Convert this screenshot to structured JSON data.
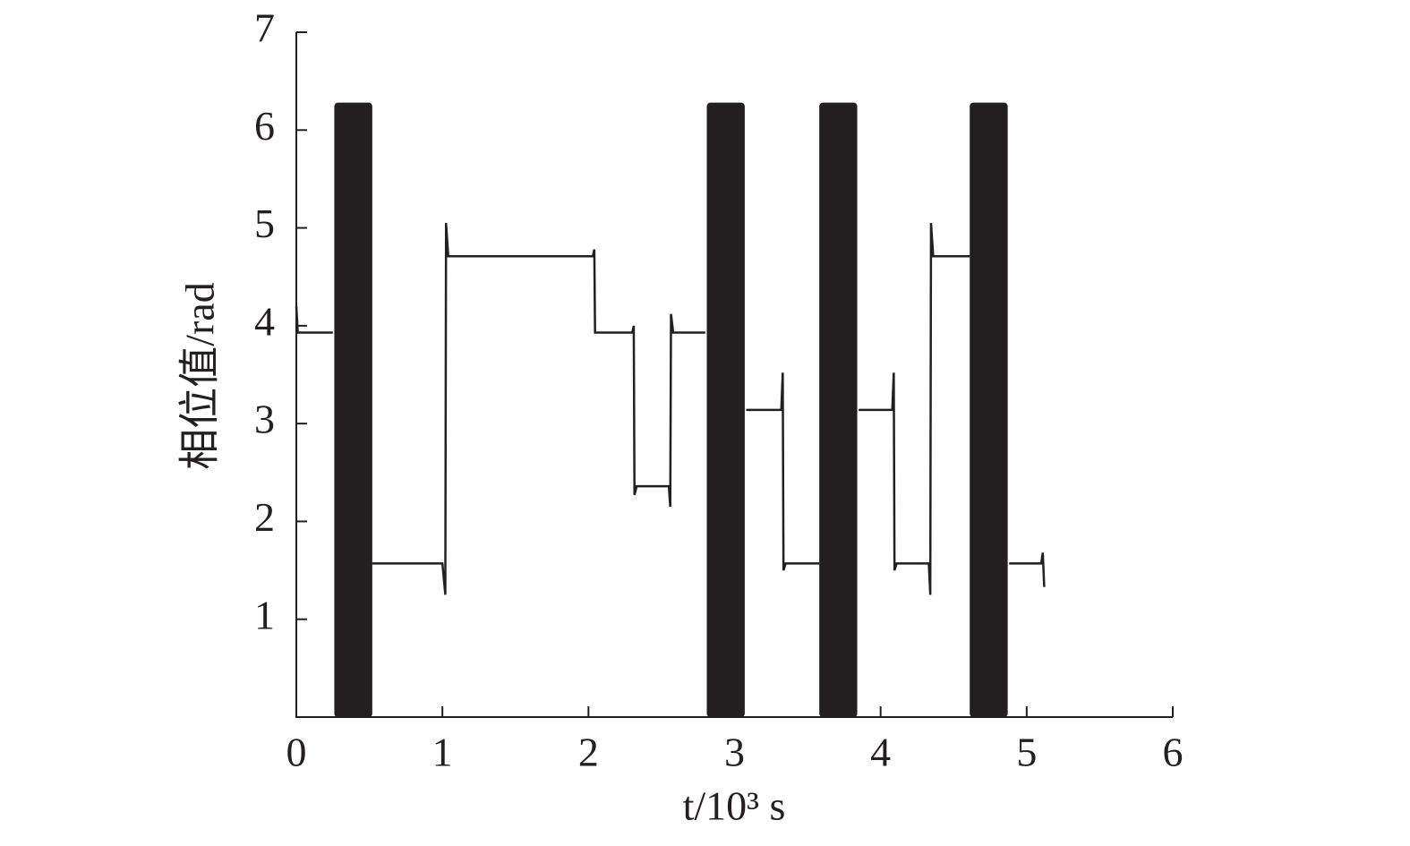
{
  "chart_data": {
    "type": "line",
    "xlabel": "t/10³ s",
    "ylabel": "相位值/rad",
    "xlim": [
      0,
      6
    ],
    "xticks": [
      0,
      1,
      2,
      3,
      4,
      5,
      6
    ],
    "ylim": [
      0,
      7
    ],
    "yticks": [
      1,
      2,
      3,
      4,
      5,
      6,
      7
    ],
    "color": "#231f20",
    "series": [
      {
        "color": "#231f20",
        "x": [
          0,
          0.01,
          0.25,
          0.4,
          0.52,
          1.0,
          1.02,
          1.025,
          1.04,
          2.03,
          2.04,
          2.045,
          2.3,
          2.31,
          2.315,
          2.33,
          2.55,
          2.56,
          2.565,
          2.58,
          2.8,
          2.95,
          3.08,
          3.32,
          3.33,
          3.335,
          3.35,
          3.58,
          3.7,
          3.85,
          4.08,
          4.09,
          4.095,
          4.11,
          4.33,
          4.34,
          4.345,
          4.36,
          4.61,
          4.75,
          4.88,
          5.1,
          5.11,
          5.12
        ],
        "values": [
          4.2,
          3.93,
          3.93,
          null,
          1.57,
          1.57,
          1.25,
          5.05,
          4.71,
          4.71,
          4.78,
          3.93,
          3.93,
          4.0,
          2.27,
          2.36,
          2.36,
          2.15,
          4.12,
          3.93,
          3.93,
          null,
          3.14,
          3.14,
          3.52,
          1.5,
          1.57,
          1.57,
          null,
          3.14,
          3.14,
          3.52,
          1.5,
          1.57,
          1.57,
          1.25,
          5.05,
          4.71,
          4.71,
          null,
          1.57,
          1.57,
          1.68,
          1.33
        ]
      }
    ],
    "bands": [
      {
        "x0": 0.26,
        "x1": 0.52,
        "y0": 0,
        "y1": 6.28
      },
      {
        "x0": 2.81,
        "x1": 3.07,
        "y0": 0,
        "y1": 6.28
      },
      {
        "x0": 3.58,
        "x1": 3.84,
        "y0": 0,
        "y1": 6.28
      },
      {
        "x0": 4.61,
        "x1": 4.87,
        "y0": 0,
        "y1": 6.28
      }
    ]
  }
}
